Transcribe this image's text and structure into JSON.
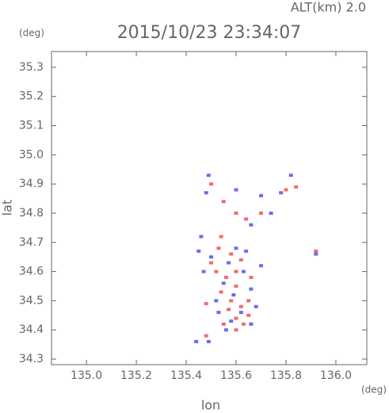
{
  "chart_data": {
    "type": "scatter",
    "title": "2015/10/23 23:34:07",
    "altitude_label": "ALT(km)  2.0",
    "y_unit": "(deg)",
    "x_unit": "(deg)",
    "xlabel": "lon",
    "ylabel": "lat",
    "xlim": [
      134.86,
      136.124
    ],
    "ylim": [
      34.281,
      35.354
    ],
    "xticks": [
      {
        "value": 135.0,
        "label": "135.0"
      },
      {
        "value": 135.2,
        "label": "135.2"
      },
      {
        "value": 135.4,
        "label": "135.4"
      },
      {
        "value": 135.6,
        "label": "135.6"
      },
      {
        "value": 135.8,
        "label": "135.8"
      },
      {
        "value": 136.0,
        "label": "136.0"
      }
    ],
    "yticks": [
      34.3,
      34.4,
      34.5,
      34.6,
      34.7,
      34.8,
      34.9,
      {
        "value": 35.0,
        "label": "35.0"
      },
      35.1,
      35.2,
      35.3
    ],
    "grid": false,
    "series": [
      {
        "color": "#f26b6b",
        "x": [
          135.5,
          135.55,
          135.6,
          135.64,
          135.7,
          135.8,
          135.84,
          135.92,
          135.54,
          135.58,
          135.62,
          135.52,
          135.56,
          135.6,
          135.5,
          135.48,
          135.58,
          135.62,
          135.65,
          135.55,
          135.6,
          135.63,
          135.48,
          135.57,
          135.6,
          135.66,
          135.54,
          135.6,
          135.65,
          135.53
        ],
        "y": [
          34.9,
          34.84,
          34.8,
          34.78,
          34.8,
          34.88,
          34.89,
          34.67,
          34.72,
          34.66,
          34.64,
          34.6,
          34.58,
          34.55,
          34.63,
          34.49,
          34.5,
          34.48,
          34.45,
          34.42,
          34.4,
          34.42,
          34.38,
          34.47,
          34.6,
          34.58,
          34.53,
          34.44,
          34.5,
          34.68
        ]
      },
      {
        "color": "#6b6bf2",
        "x": [
          135.49,
          135.48,
          135.6,
          135.7,
          135.78,
          135.82,
          135.74,
          135.66,
          135.46,
          135.5,
          135.57,
          135.64,
          135.47,
          135.55,
          135.63,
          135.59,
          135.68,
          135.52,
          135.62,
          135.56,
          135.44,
          135.49,
          135.66,
          135.58,
          135.6,
          135.53,
          135.66,
          135.45,
          135.92,
          135.7
        ],
        "y": [
          34.93,
          34.87,
          34.88,
          34.86,
          34.87,
          34.93,
          34.8,
          34.76,
          34.72,
          34.65,
          34.63,
          34.67,
          34.6,
          34.56,
          34.6,
          34.52,
          34.48,
          34.5,
          34.46,
          34.4,
          34.36,
          34.36,
          34.42,
          34.43,
          34.68,
          34.46,
          34.54,
          34.67,
          34.66,
          34.62
        ]
      }
    ]
  }
}
